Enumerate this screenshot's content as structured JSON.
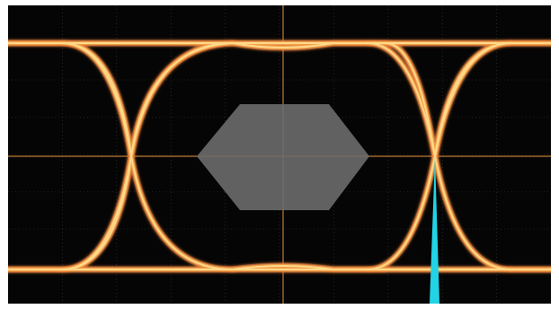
{
  "display": {
    "type": "eye-diagram",
    "grid_divisions_x": 10,
    "grid_divisions_y": 8,
    "grid": true,
    "colors": {
      "background": "#050505",
      "grid": "#3a3a3a",
      "axis": "#c07a35",
      "eye_outer": "#e0672a",
      "eye_core": "#ffd98a",
      "eye_mid": "#f2a24a",
      "mask": "#6b6b6b",
      "jitter_histogram": "#22d3e6"
    },
    "labels": {
      "top_marker": "",
      "left_marker": "",
      "right_marker": "",
      "bottom_right_marker": "",
      "mask_label": ""
    }
  }
}
